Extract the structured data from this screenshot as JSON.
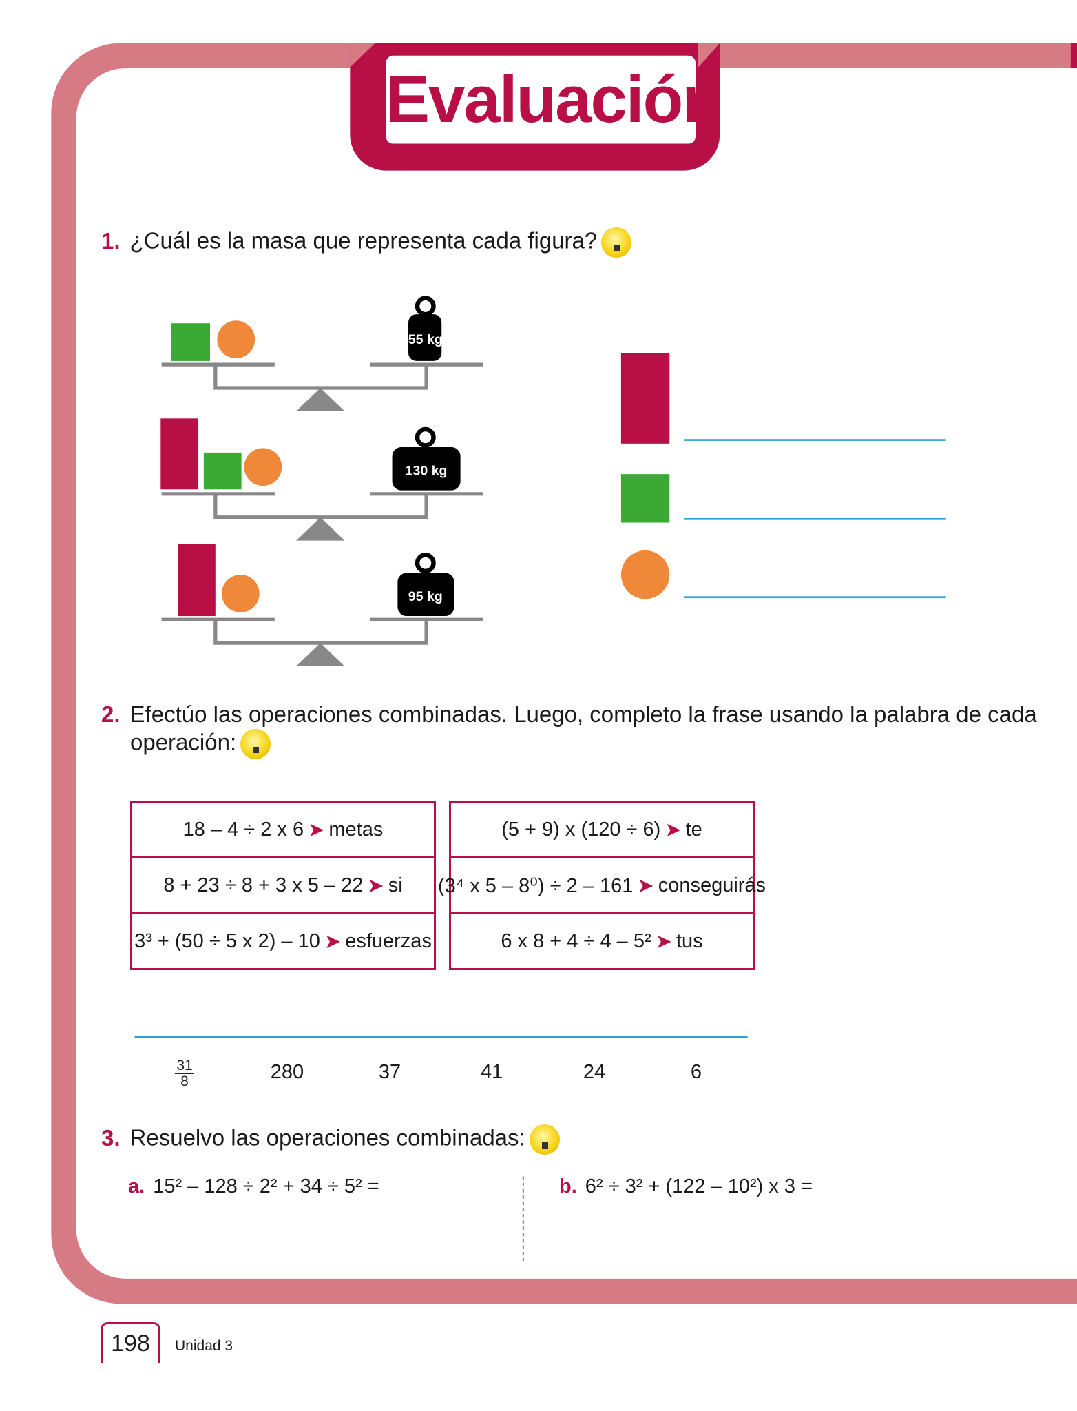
{
  "title": "Evaluación",
  "colors": {
    "frame": "#d67b84",
    "accent": "#b80f47",
    "green": "#3aaa35",
    "orange": "#f0883a",
    "line": "#2a9fd8"
  },
  "q1": {
    "number": "1.",
    "text": "¿Cuál es la masa que representa cada figura?",
    "icon": "lightbulb-icon",
    "weights": [
      "55 kg",
      "130 kg",
      "95 kg"
    ]
  },
  "q2": {
    "number": "2.",
    "text": "Efectúo las operaciones combinadas. Luego, completo la frase usando la palabra de cada",
    "text2": "operación:",
    "icon": "lightbulb-icon",
    "left": [
      {
        "expr": "18 – 4 ÷ 2 x 6",
        "word": "metas"
      },
      {
        "expr": "8 + 23 ÷ 8 + 3 x 5 – 22",
        "word": "si"
      },
      {
        "expr": "3³ + (50 ÷ 5 x 2) – 10",
        "word": "esfuerzas"
      }
    ],
    "right": [
      {
        "expr": "(5 + 9) x (120 ÷ 6)",
        "word": "te"
      },
      {
        "expr": "(3⁴ x 5 – 8⁰) ÷ 2 – 161",
        "word": "conseguirás"
      },
      {
        "expr": "6 x 8 + 4 ÷ 4 – 5²",
        "word": "tus"
      }
    ],
    "answers": {
      "frac_num": "31",
      "frac_den": "8",
      "values": [
        "280",
        "37",
        "41",
        "24",
        "6"
      ]
    }
  },
  "q3": {
    "number": "3.",
    "text": "Resuelvo las operaciones combinadas:",
    "icon": "lightbulb-icon",
    "a_label": "a.",
    "a": "15² – 128 ÷ 2² + 34 ÷ 5² =",
    "b_label": "b.",
    "b": "6² ÷ 3² + (122 – 10²) x 3 ="
  },
  "footer": {
    "page": "198",
    "unit": "Unidad 3"
  }
}
